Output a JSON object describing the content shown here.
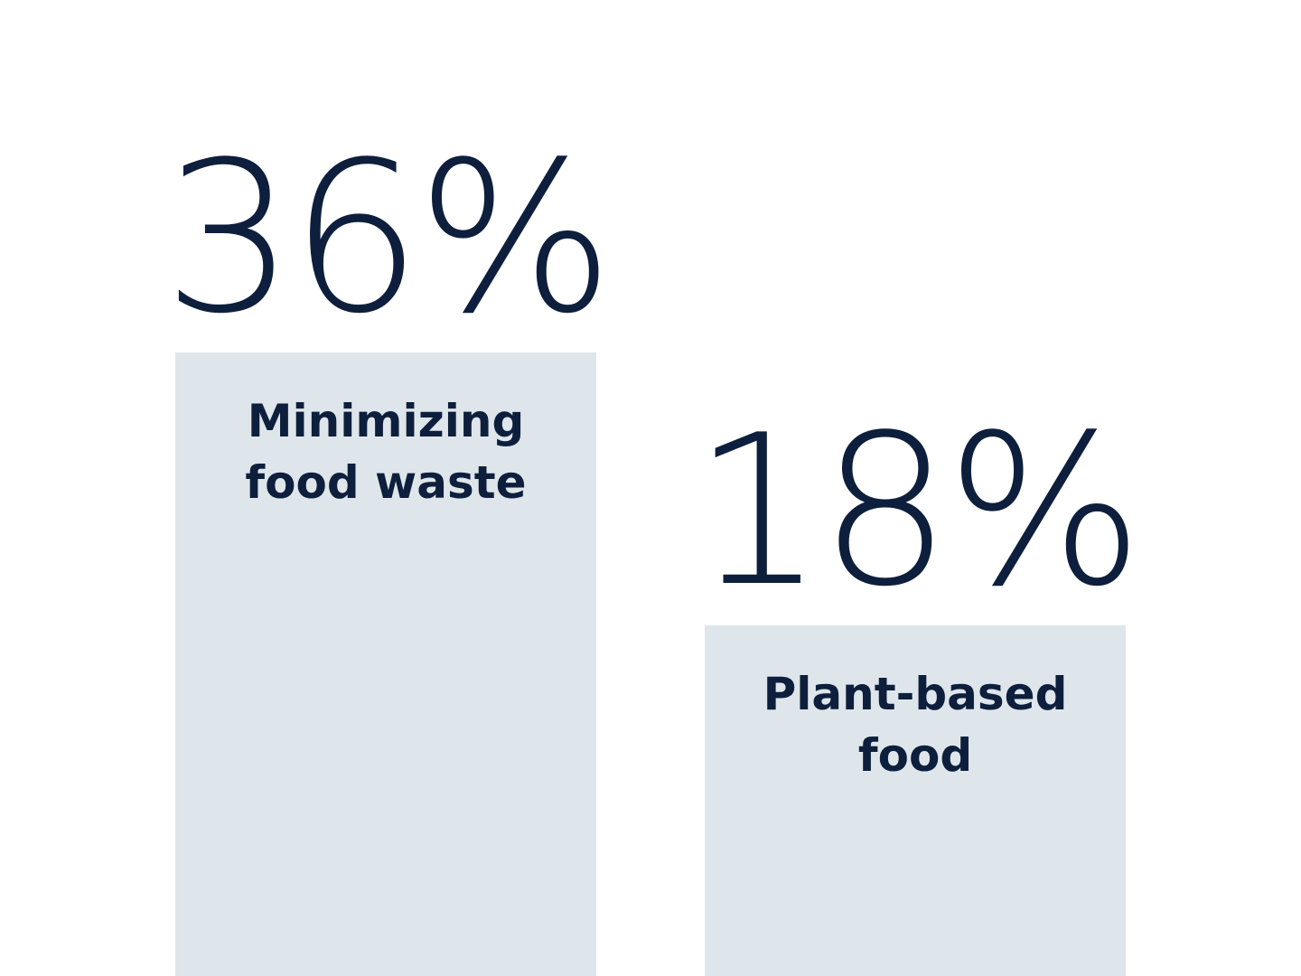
{
  "chart_data": {
    "type": "bar",
    "categories": [
      "Minimizing food waste",
      "Plant-based food"
    ],
    "values": [
      36,
      18
    ],
    "value_labels": [
      "36%",
      "18%"
    ],
    "color": "#dfe6eb"
  }
}
